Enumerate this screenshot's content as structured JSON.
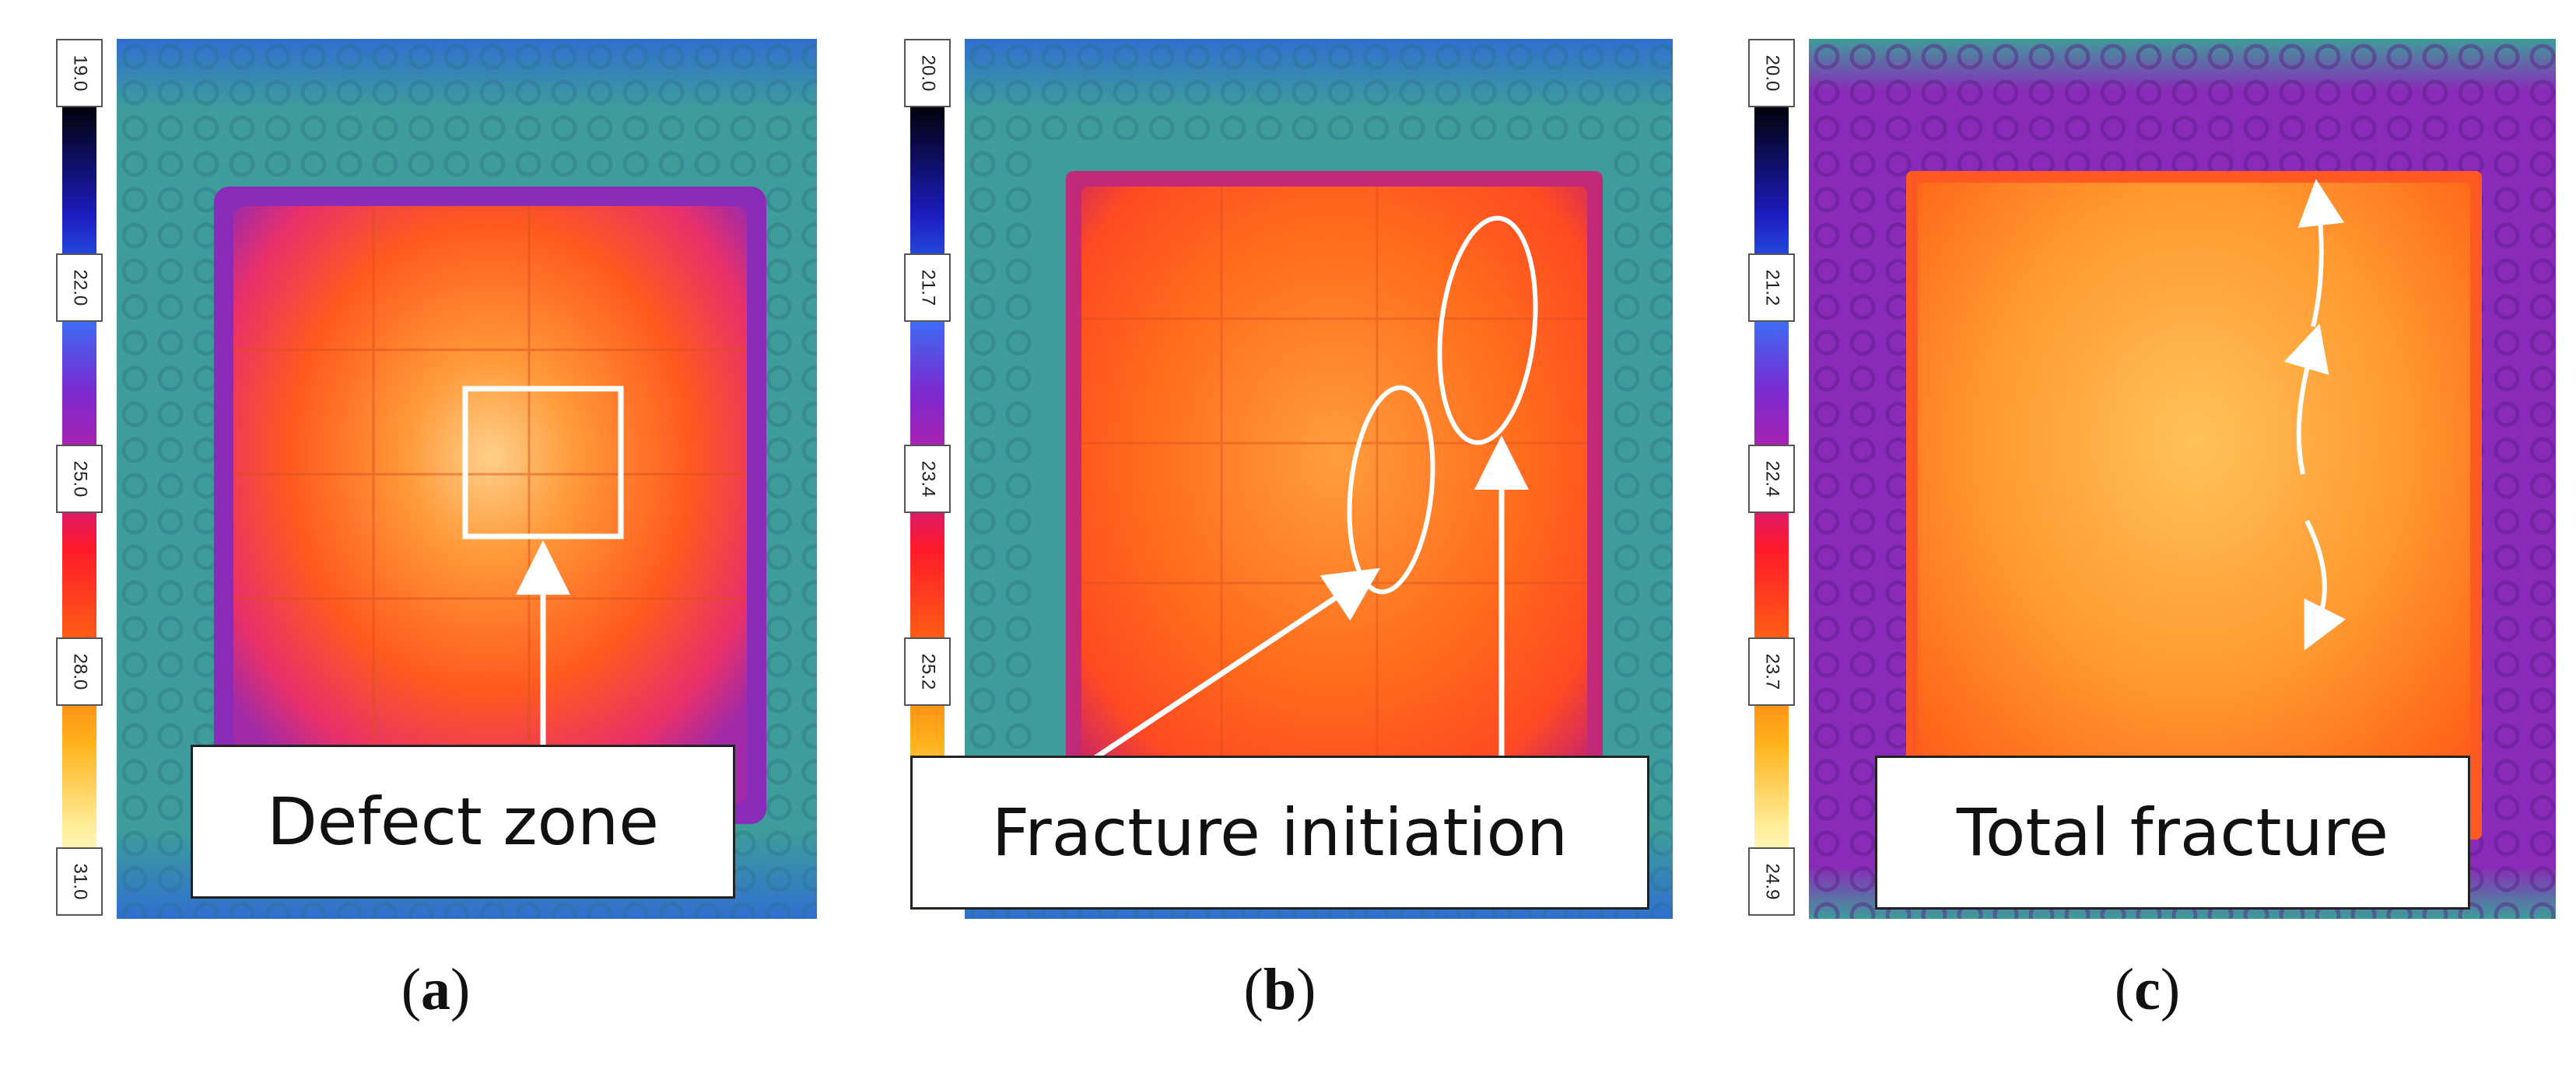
{
  "panels": [
    {
      "id": "a",
      "caption_letter": "a",
      "callout": "Defect zone",
      "scale_ticks": [
        "19.0",
        "22.0",
        "25.0",
        "28.0",
        "31.0"
      ]
    },
    {
      "id": "b",
      "caption_letter": "b",
      "callout": "Fracture initiation",
      "scale_ticks": [
        "20.0",
        "21.7",
        "23.4",
        "25.2"
      ]
    },
    {
      "id": "c",
      "caption_letter": "c",
      "callout": "Total fracture",
      "scale_ticks": [
        "20.0",
        "21.2",
        "22.4",
        "23.7",
        "24.9"
      ]
    }
  ],
  "colors": {
    "scale": [
      "#ffffff",
      "#000000",
      "#1c1cbe",
      "#2f7dff",
      "#9a2ad8",
      "#e0187c",
      "#ff2a1a",
      "#ff8a14",
      "#ffd24a",
      "#ffffff"
    ],
    "background_teal": "#3e9d9a",
    "hot_orange": "#ff7a1c",
    "frame_purple": "#8a2ab8"
  }
}
